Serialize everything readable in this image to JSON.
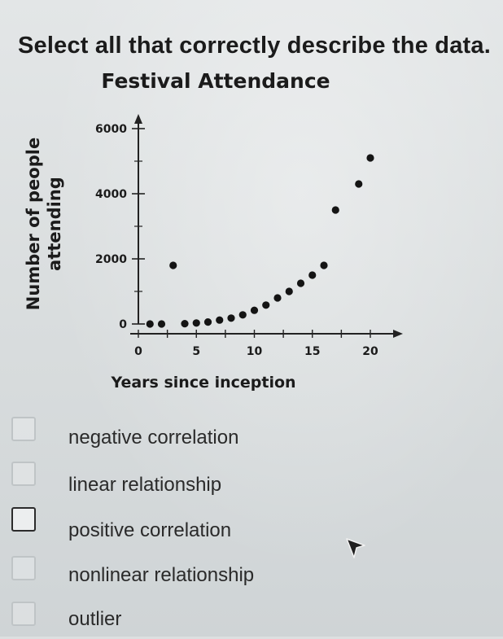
{
  "question": {
    "text": "Select all that correctly describe the data."
  },
  "chart_data": {
    "type": "scatter",
    "title": "Festival Attendance",
    "xlabel": "Years since inception",
    "ylabel": "Number of people attending",
    "xlim": [
      0,
      20
    ],
    "ylim": [
      0,
      6000
    ],
    "xticks": [
      0,
      5,
      10,
      15,
      20
    ],
    "yticks": [
      0,
      2000,
      4000,
      6000
    ],
    "points": [
      {
        "x": 1,
        "y": 0
      },
      {
        "x": 2,
        "y": 0
      },
      {
        "x": 4,
        "y": 10
      },
      {
        "x": 5,
        "y": 30
      },
      {
        "x": 6,
        "y": 60
      },
      {
        "x": 7,
        "y": 120
      },
      {
        "x": 8,
        "y": 180
      },
      {
        "x": 9,
        "y": 280
      },
      {
        "x": 10,
        "y": 420
      },
      {
        "x": 11,
        "y": 580
      },
      {
        "x": 12,
        "y": 800
      },
      {
        "x": 13,
        "y": 1000
      },
      {
        "x": 14,
        "y": 1250
      },
      {
        "x": 15,
        "y": 1500
      },
      {
        "x": 16,
        "y": 1800
      },
      {
        "x": 3,
        "y": 1800
      },
      {
        "x": 17,
        "y": 3500
      },
      {
        "x": 19,
        "y": 4300
      },
      {
        "x": 20,
        "y": 5100
      }
    ]
  },
  "options": [
    {
      "label": "negative correlation",
      "checked": false
    },
    {
      "label": "linear relationship",
      "checked": false
    },
    {
      "label": "positive correlation",
      "checked": false
    },
    {
      "label": "nonlinear relationship",
      "checked": false
    },
    {
      "label": "outlier",
      "checked": false
    }
  ],
  "cursor": {
    "icon": "mouse-pointer-icon"
  }
}
